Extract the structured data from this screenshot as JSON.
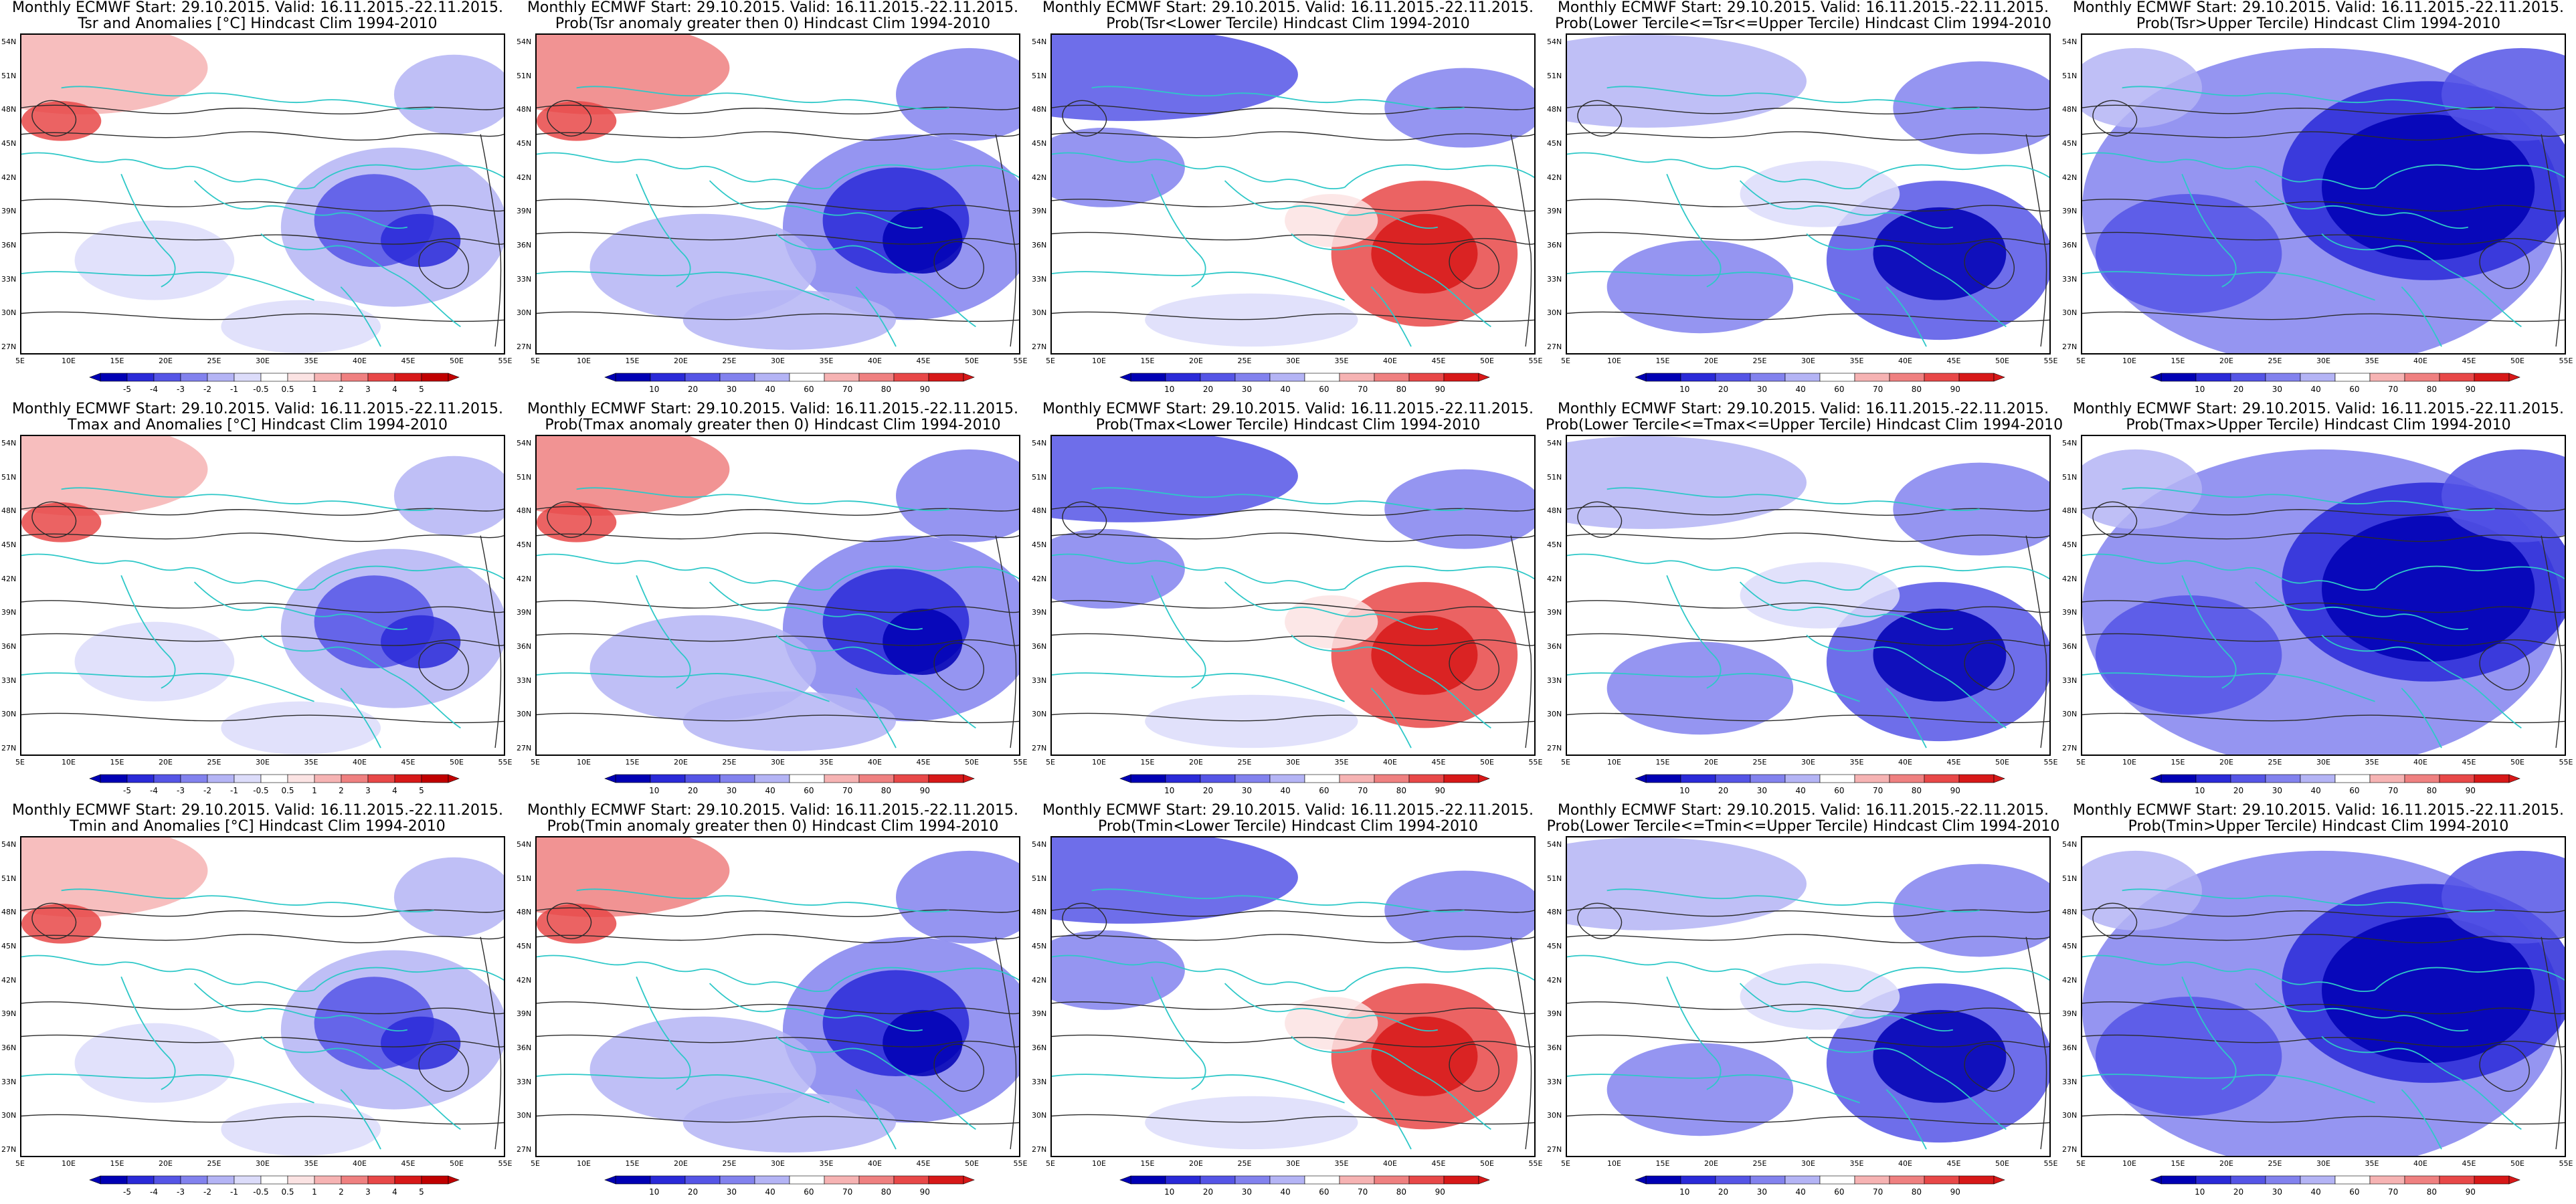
{
  "figure": {
    "colors": {
      "red_scale": [
        "#fbe3e3",
        "#f6b3b3",
        "#ef8080",
        "#e84848",
        "#d71818",
        "#c00000"
      ],
      "blue_scale": [
        "#dcdcfa",
        "#b4b4f5",
        "#8282ee",
        "#5555e6",
        "#2a2ad8",
        "#0000b4"
      ],
      "contour": "#2b2b2b",
      "coast": "#2ec8c8"
    },
    "lat_labels": [
      "54N",
      "51N",
      "48N",
      "45N",
      "42N",
      "39N",
      "36N",
      "33N",
      "30N",
      "27N"
    ],
    "lon_labels": [
      "5E",
      "10E",
      "15E",
      "20E",
      "25E",
      "30E",
      "35E",
      "40E",
      "45E",
      "50E",
      "55E"
    ],
    "panels": [
      {
        "title1": "Monthly ECMWF Start: 29.10.2015. Valid: 16.11.2015.-22.11.2015.",
        "title2": "Tsr and Anomalies [°C] Hindcast Clim 1994-2010",
        "kind": "anom",
        "cbar_labels": [
          "-5",
          "-4",
          "-3",
          "-2",
          "-1",
          "-0.5",
          "0.5",
          "1",
          "2",
          "3",
          "4",
          "5"
        ]
      },
      {
        "title1": "Monthly ECMWF Start: 29.10.2015. Valid: 16.11.2015.-22.11.2015.",
        "title2": "Prob(Tsr anomaly greater then 0) Hindcast Clim 1994-2010",
        "kind": "prob",
        "cbar_labels": [
          "10",
          "20",
          "30",
          "40",
          "60",
          "70",
          "80",
          "90"
        ]
      },
      {
        "title1": "Monthly ECMWF Start: 29.10.2015. Valid: 16.11.2015.-22.11.2015.",
        "title2": "Prob(Tsr<Lower Tercile) Hindcast Clim 1994-2010",
        "kind": "lower",
        "cbar_labels": [
          "10",
          "20",
          "30",
          "40",
          "60",
          "70",
          "80",
          "90"
        ]
      },
      {
        "title1": "Monthly ECMWF Start: 29.10.2015. Valid: 16.11.2015.-22.11.2015.",
        "title2": "Prob(Lower Tercile<=Tsr<=Upper Tercile) Hindcast Clim 1994-2010",
        "kind": "middle",
        "cbar_labels": [
          "10",
          "20",
          "30",
          "40",
          "60",
          "70",
          "80",
          "90"
        ]
      },
      {
        "title1": "Monthly ECMWF Start: 29.10.2015. Valid: 16.11.2015.-22.11.2015.",
        "title2": "Prob(Tsr>Upper Tercile) Hindcast Clim 1994-2010",
        "kind": "upper",
        "cbar_labels": [
          "10",
          "20",
          "30",
          "40",
          "60",
          "70",
          "80",
          "90"
        ]
      },
      {
        "title1": "Monthly ECMWF Start: 29.10.2015. Valid: 16.11.2015.-22.11.2015.",
        "title2": "Tmax and Anomalies [°C] Hindcast Clim 1994-2010",
        "kind": "anom",
        "cbar_labels": [
          "-5",
          "-4",
          "-3",
          "-2",
          "-1",
          "-0.5",
          "0.5",
          "1",
          "2",
          "3",
          "4",
          "5"
        ]
      },
      {
        "title1": "Monthly ECMWF Start: 29.10.2015. Valid: 16.11.2015.-22.11.2015.",
        "title2": "Prob(Tmax anomaly greater then 0) Hindcast Clim 1994-2010",
        "kind": "prob",
        "cbar_labels": [
          "10",
          "20",
          "30",
          "40",
          "60",
          "70",
          "80",
          "90"
        ]
      },
      {
        "title1": "Monthly ECMWF Start: 29.10.2015. Valid: 16.11.2015.-22.11.2015.",
        "title2": "Prob(Tmax<Lower Tercile) Hindcast Clim 1994-2010",
        "kind": "lower",
        "cbar_labels": [
          "10",
          "20",
          "30",
          "40",
          "60",
          "70",
          "80",
          "90"
        ]
      },
      {
        "title1": "Monthly ECMWF Start: 29.10.2015. Valid: 16.11.2015.-22.11.2015.",
        "title2": "Prob(Lower Tercile<=Tmax<=Upper Tercile) Hindcast Clim 1994-2010",
        "kind": "middle",
        "cbar_labels": [
          "10",
          "20",
          "30",
          "40",
          "60",
          "70",
          "80",
          "90"
        ]
      },
      {
        "title1": "Monthly ECMWF Start: 29.10.2015. Valid: 16.11.2015.-22.11.2015.",
        "title2": "Prob(Tmax>Upper Tercile) Hindcast Clim 1994-2010",
        "kind": "upper",
        "cbar_labels": [
          "10",
          "20",
          "30",
          "40",
          "60",
          "70",
          "80",
          "90"
        ]
      },
      {
        "title1": "Monthly ECMWF Start: 29.10.2015. Valid: 16.11.2015.-22.11.2015.",
        "title2": "Tmin and Anomalies [°C] Hindcast Clim 1994-2010",
        "kind": "anom",
        "cbar_labels": [
          "-5",
          "-4",
          "-3",
          "-2",
          "-1",
          "-0.5",
          "0.5",
          "1",
          "2",
          "3",
          "4",
          "5"
        ]
      },
      {
        "title1": "Monthly ECMWF Start: 29.10.2015. Valid: 16.11.2015.-22.11.2015.",
        "title2": "Prob(Tmin anomaly greater then 0) Hindcast Clim 1994-2010",
        "kind": "prob",
        "cbar_labels": [
          "10",
          "20",
          "30",
          "40",
          "60",
          "70",
          "80",
          "90"
        ]
      },
      {
        "title1": "Monthly ECMWF Start: 29.10.2015. Valid: 16.11.2015.-22.11.2015.",
        "title2": "Prob(Tmin<Lower Tercile) Hindcast Clim 1994-2010",
        "kind": "lower",
        "cbar_labels": [
          "10",
          "20",
          "30",
          "40",
          "60",
          "70",
          "80",
          "90"
        ]
      },
      {
        "title1": "Monthly ECMWF Start: 29.10.2015. Valid: 16.11.2015.-22.11.2015.",
        "title2": "Prob(Lower Tercile<=Tmin<=Upper Tercile) Hindcast Clim 1994-2010",
        "kind": "middle",
        "cbar_labels": [
          "10",
          "20",
          "30",
          "40",
          "60",
          "70",
          "80",
          "90"
        ]
      },
      {
        "title1": "Monthly ECMWF Start: 29.10.2015. Valid: 16.11.2015.-22.11.2015.",
        "title2": "Prob(Tmin>Upper Tercile) Hindcast Clim 1994-2010",
        "kind": "upper",
        "cbar_labels": [
          "10",
          "20",
          "30",
          "40",
          "60",
          "70",
          "80",
          "90"
        ]
      }
    ]
  }
}
